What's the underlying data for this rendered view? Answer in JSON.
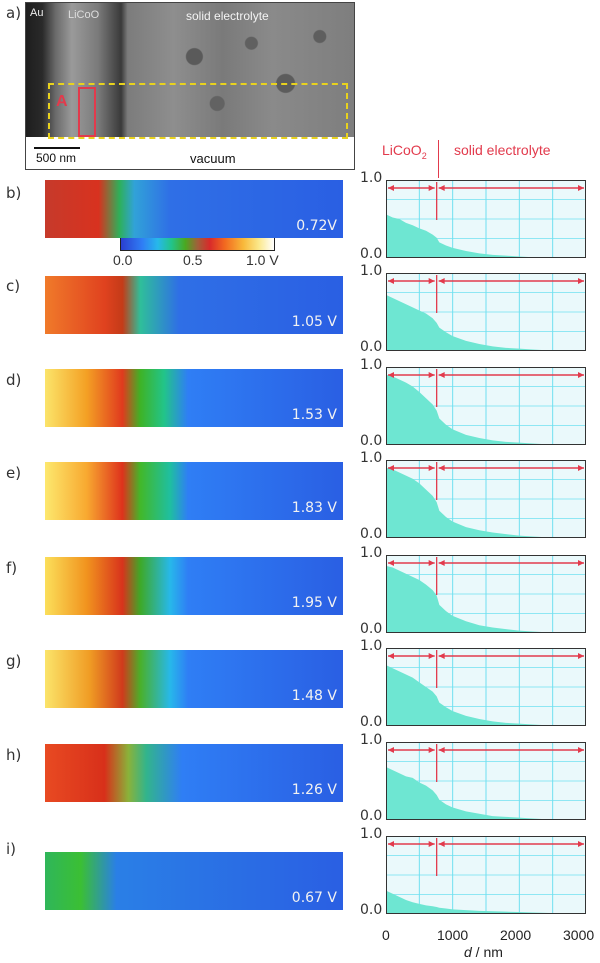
{
  "tem": {
    "panel": "a)",
    "labels": {
      "au": "Au",
      "licoo": "LiCoO",
      "solid_electrolyte": "solid electrolyte",
      "marker": "A",
      "scalebar": "500 nm",
      "vacuum": "vacuum"
    }
  },
  "colorbar": {
    "ticks": [
      "0.0",
      "0.5",
      "1.0 V"
    ]
  },
  "profile_header": {
    "licoo2": "LiCoO",
    "licoo2_sub": "2",
    "solid_electrolyte": "solid electrolyte"
  },
  "panels": [
    {
      "letter": "b)",
      "voltage": "0.72V"
    },
    {
      "letter": "c)",
      "voltage": "1.05 V"
    },
    {
      "letter": "d)",
      "voltage": "1.53 V"
    },
    {
      "letter": "e)",
      "voltage": "1.83 V"
    },
    {
      "letter": "f)",
      "voltage": "1.95 V"
    },
    {
      "letter": "g)",
      "voltage": "1.48 V"
    },
    {
      "letter": "h)",
      "voltage": "1.26 V"
    },
    {
      "letter": "i)",
      "voltage": "0.67 V"
    }
  ],
  "axis": {
    "y_top": "1.0",
    "y_bottom": "0.0",
    "x_ticks": [
      "0",
      "1000",
      "2000",
      "3000"
    ],
    "xlabel_var": "d",
    "xlabel_unit": " / nm"
  },
  "colors": {
    "accent": "#e23a4c",
    "profile_fill": "#6ee6d2",
    "grid": "#6fe0f0",
    "map_blue": "#2a5fe3"
  },
  "chart_data": {
    "type": "area",
    "xlabel": "d / nm",
    "xlim": [
      0,
      3000
    ],
    "ylim": [
      0,
      1
    ],
    "x": [
      0,
      100,
      200,
      300,
      400,
      500,
      600,
      700,
      760,
      800,
      900,
      1000,
      1200,
      1400,
      1600,
      1800,
      2000,
      2200,
      2400,
      2600,
      2800,
      3000
    ],
    "series": [
      {
        "name": "0.72V",
        "values": [
          0.56,
          0.52,
          0.5,
          0.45,
          0.42,
          0.38,
          0.35,
          0.3,
          0.26,
          0.2,
          0.16,
          0.13,
          0.09,
          0.06,
          0.04,
          0.03,
          0.02,
          0.01,
          0.005,
          0.003,
          0.002,
          0.001
        ]
      },
      {
        "name": "1.05 V",
        "values": [
          0.72,
          0.68,
          0.64,
          0.6,
          0.56,
          0.52,
          0.48,
          0.42,
          0.36,
          0.3,
          0.24,
          0.19,
          0.13,
          0.09,
          0.06,
          0.04,
          0.03,
          0.02,
          0.01,
          0.005,
          0.003,
          0.002
        ]
      },
      {
        "name": "1.53 V",
        "values": [
          0.9,
          0.88,
          0.84,
          0.8,
          0.75,
          0.68,
          0.6,
          0.52,
          0.44,
          0.34,
          0.26,
          0.2,
          0.13,
          0.09,
          0.06,
          0.04,
          0.03,
          0.02,
          0.01,
          0.005,
          0.003,
          0.002
        ]
      },
      {
        "name": "1.83 V",
        "values": [
          0.9,
          0.88,
          0.84,
          0.8,
          0.76,
          0.7,
          0.62,
          0.54,
          0.46,
          0.35,
          0.27,
          0.21,
          0.14,
          0.1,
          0.07,
          0.05,
          0.03,
          0.02,
          0.01,
          0.005,
          0.003,
          0.002
        ]
      },
      {
        "name": "1.95 V",
        "values": [
          0.86,
          0.84,
          0.8,
          0.76,
          0.72,
          0.68,
          0.62,
          0.55,
          0.48,
          0.36,
          0.28,
          0.22,
          0.15,
          0.1,
          0.07,
          0.05,
          0.03,
          0.02,
          0.01,
          0.005,
          0.003,
          0.002
        ]
      },
      {
        "name": "1.48 V",
        "values": [
          0.78,
          0.74,
          0.7,
          0.66,
          0.62,
          0.56,
          0.5,
          0.44,
          0.38,
          0.3,
          0.24,
          0.19,
          0.13,
          0.09,
          0.06,
          0.04,
          0.03,
          0.02,
          0.01,
          0.005,
          0.003,
          0.002
        ]
      },
      {
        "name": "1.26 V",
        "values": [
          0.68,
          0.64,
          0.6,
          0.56,
          0.54,
          0.48,
          0.44,
          0.38,
          0.32,
          0.26,
          0.2,
          0.16,
          0.11,
          0.08,
          0.05,
          0.04,
          0.03,
          0.02,
          0.01,
          0.005,
          0.003,
          0.002
        ]
      },
      {
        "name": "0.67 V",
        "values": [
          0.3,
          0.26,
          0.22,
          0.18,
          0.15,
          0.13,
          0.11,
          0.1,
          0.09,
          0.08,
          0.07,
          0.06,
          0.05,
          0.04,
          0.035,
          0.03,
          0.025,
          0.02,
          0.015,
          0.01,
          0.01,
          0.01
        ]
      }
    ]
  }
}
